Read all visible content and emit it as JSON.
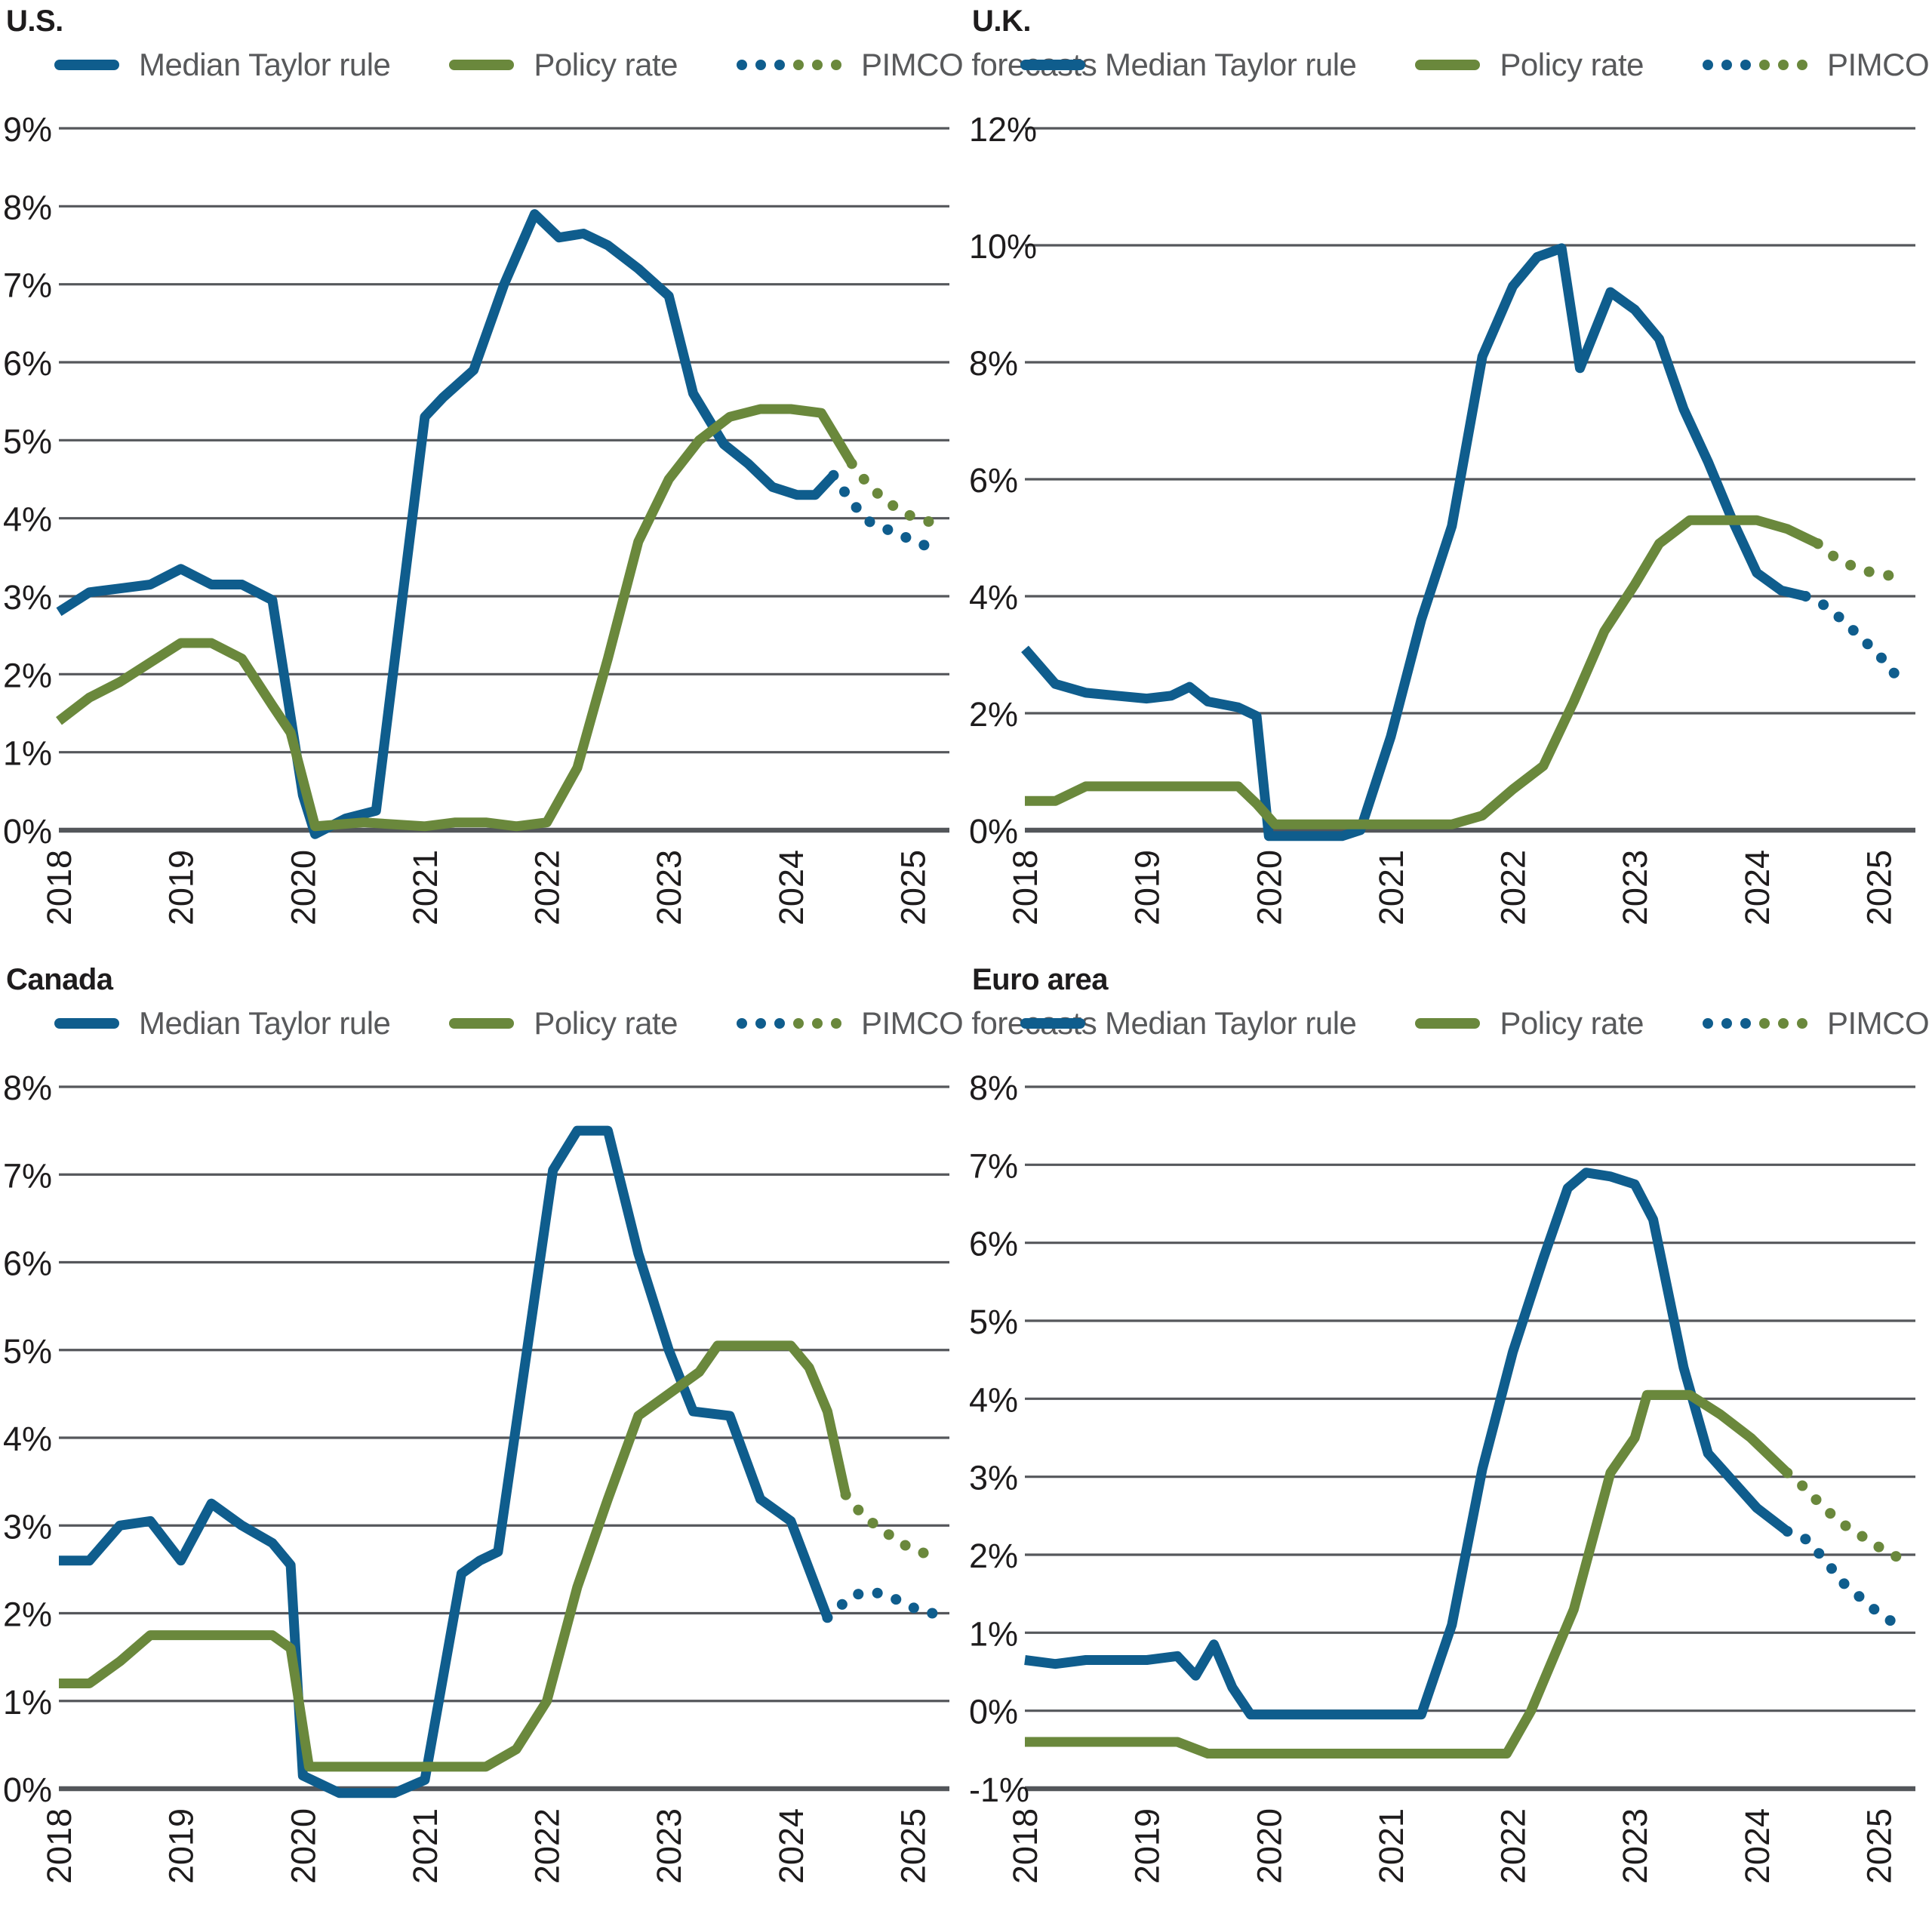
{
  "colors": {
    "taylor_blue": "#0f5d8d",
    "policy_green": "#6a883c",
    "grid_gray": "#55575b",
    "axis_gray": "#53565a",
    "tick_text": "#1e1c1d",
    "legend_text": "#58595b"
  },
  "legend": {
    "taylor": "Median Taylor rule",
    "policy": "Policy rate",
    "forecast": "PIMCO forecasts"
  },
  "chart_data": [
    {
      "id": "us",
      "type": "line",
      "title": "U.S.",
      "x_range": [
        2018,
        2025.3
      ],
      "x_ticks": [
        2018,
        2019,
        2020,
        2021,
        2022,
        2023,
        2024,
        2025
      ],
      "y_range": [
        0,
        9
      ],
      "y_tick_step": 1,
      "y_tick_suffix": "%",
      "grid": true,
      "legend_position": "top",
      "series": [
        {
          "name": "Median Taylor rule",
          "color": "taylor_blue",
          "style": "solid",
          "x": [
            2018.0,
            2018.25,
            2018.5,
            2018.75,
            2019.0,
            2019.25,
            2019.5,
            2019.75,
            2020.0,
            2020.1,
            2020.35,
            2020.6,
            2021.0,
            2021.15,
            2021.4,
            2021.65,
            2021.9,
            2022.1,
            2022.3,
            2022.5,
            2022.75,
            2023.0,
            2023.2,
            2023.45,
            2023.65,
            2023.85,
            2024.05,
            2024.2,
            2024.35
          ],
          "y": [
            2.8,
            3.05,
            3.1,
            3.15,
            3.35,
            3.15,
            3.15,
            2.95,
            0.45,
            -0.05,
            0.15,
            0.25,
            5.3,
            5.55,
            5.9,
            7.0,
            7.9,
            7.6,
            7.65,
            7.5,
            7.2,
            6.85,
            5.6,
            4.95,
            4.7,
            4.4,
            4.3,
            4.3,
            4.55
          ]
        },
        {
          "name": "Policy rate",
          "color": "policy_green",
          "style": "solid",
          "x": [
            2018.0,
            2018.25,
            2018.5,
            2018.75,
            2019.0,
            2019.25,
            2019.5,
            2019.75,
            2019.9,
            2020.1,
            2020.5,
            2021.0,
            2021.25,
            2021.5,
            2021.75,
            2022.0,
            2022.25,
            2022.5,
            2022.75,
            2023.0,
            2023.25,
            2023.5,
            2023.75,
            2024.0,
            2024.25,
            2024.5
          ],
          "y": [
            1.4,
            1.7,
            1.9,
            2.15,
            2.4,
            2.4,
            2.2,
            1.6,
            1.25,
            0.05,
            0.1,
            0.05,
            0.1,
            0.1,
            0.05,
            0.1,
            0.8,
            2.2,
            3.7,
            4.5,
            5.0,
            5.3,
            5.4,
            5.4,
            5.35,
            4.7
          ]
        },
        {
          "name": "PIMCO forecast (Taylor rule)",
          "color": "taylor_blue",
          "style": "dotted",
          "x": [
            2024.35,
            2024.5,
            2024.65,
            2024.8,
            2024.95,
            2025.1,
            2025.2
          ],
          "y": [
            4.55,
            4.2,
            3.95,
            3.85,
            3.75,
            3.65,
            3.6
          ]
        },
        {
          "name": "PIMCO forecast (policy rate)",
          "color": "policy_green",
          "style": "dotted",
          "x": [
            2024.5,
            2024.65,
            2024.8,
            2024.95,
            2025.1,
            2025.2
          ],
          "y": [
            4.7,
            4.4,
            4.2,
            4.05,
            3.97,
            3.93
          ]
        }
      ]
    },
    {
      "id": "uk",
      "type": "line",
      "title": "U.K.",
      "x_range": [
        2018,
        2025.3
      ],
      "x_ticks": [
        2018,
        2019,
        2020,
        2021,
        2022,
        2023,
        2024,
        2025
      ],
      "y_range": [
        0,
        12
      ],
      "y_tick_step": 2,
      "y_tick_suffix": "%",
      "grid": true,
      "legend_position": "top",
      "series": [
        {
          "name": "Median Taylor rule",
          "color": "taylor_blue",
          "style": "solid",
          "x": [
            2018.0,
            2018.25,
            2018.5,
            2018.75,
            2019.0,
            2019.2,
            2019.35,
            2019.5,
            2019.75,
            2019.9,
            2020.0,
            2020.6,
            2020.75,
            2021.0,
            2021.25,
            2021.5,
            2021.75,
            2022.0,
            2022.2,
            2022.4,
            2022.55,
            2022.8,
            2023.0,
            2023.2,
            2023.4,
            2023.6,
            2023.8,
            2024.0,
            2024.2,
            2024.4
          ],
          "y": [
            3.1,
            2.5,
            2.35,
            2.3,
            2.25,
            2.3,
            2.45,
            2.2,
            2.1,
            1.95,
            -0.1,
            -0.1,
            0.0,
            1.6,
            3.6,
            5.2,
            8.1,
            9.3,
            9.8,
            9.95,
            7.9,
            9.2,
            8.9,
            8.4,
            7.2,
            6.3,
            5.3,
            4.4,
            4.1,
            4.0
          ]
        },
        {
          "name": "Policy rate",
          "color": "policy_green",
          "style": "solid",
          "x": [
            2018.0,
            2018.25,
            2018.5,
            2019.75,
            2019.9,
            2020.05,
            2021.5,
            2021.75,
            2022.0,
            2022.25,
            2022.5,
            2022.75,
            2023.0,
            2023.2,
            2023.45,
            2024.0,
            2024.25,
            2024.5
          ],
          "y": [
            0.5,
            0.5,
            0.75,
            0.75,
            0.45,
            0.1,
            0.1,
            0.25,
            0.7,
            1.1,
            2.2,
            3.4,
            4.2,
            4.9,
            5.3,
            5.3,
            5.15,
            4.9
          ]
        },
        {
          "name": "PIMCO forecast (Taylor rule)",
          "color": "taylor_blue",
          "style": "dotted",
          "x": [
            2024.4,
            2024.55,
            2024.7,
            2024.85,
            2025.0,
            2025.1,
            2025.2
          ],
          "y": [
            4.0,
            3.85,
            3.6,
            3.3,
            3.0,
            2.75,
            2.5
          ]
        },
        {
          "name": "PIMCO forecast (policy rate)",
          "color": "policy_green",
          "style": "dotted",
          "x": [
            2024.5,
            2024.65,
            2024.8,
            2024.95,
            2025.1,
            2025.2
          ],
          "y": [
            4.9,
            4.65,
            4.5,
            4.4,
            4.35,
            4.3
          ]
        }
      ]
    },
    {
      "id": "canada",
      "type": "line",
      "title": "Canada",
      "x_range": [
        2018,
        2025.3
      ],
      "x_ticks": [
        2018,
        2019,
        2020,
        2021,
        2022,
        2023,
        2024,
        2025
      ],
      "y_range": [
        0,
        8
      ],
      "y_tick_step": 1,
      "y_tick_suffix": "%",
      "grid": true,
      "legend_position": "top",
      "series": [
        {
          "name": "Median Taylor rule",
          "color": "taylor_blue",
          "style": "solid",
          "x": [
            2018.0,
            2018.25,
            2018.5,
            2018.75,
            2019.0,
            2019.25,
            2019.5,
            2019.75,
            2019.9,
            2020.0,
            2020.3,
            2020.75,
            2021.0,
            2021.3,
            2021.45,
            2021.6,
            2021.9,
            2022.05,
            2022.25,
            2022.5,
            2022.75,
            2023.0,
            2023.2,
            2023.5,
            2023.75,
            2024.0,
            2024.3
          ],
          "y": [
            2.6,
            2.6,
            3.0,
            3.05,
            2.6,
            3.25,
            3.0,
            2.8,
            2.55,
            0.15,
            -0.05,
            -0.05,
            0.1,
            2.45,
            2.6,
            2.7,
            5.6,
            7.05,
            7.5,
            7.5,
            6.1,
            5.0,
            4.3,
            4.25,
            3.3,
            3.05,
            1.95
          ]
        },
        {
          "name": "Policy rate",
          "color": "policy_green",
          "style": "solid",
          "x": [
            2018.0,
            2018.25,
            2018.5,
            2018.75,
            2019.75,
            2019.9,
            2020.05,
            2021.5,
            2021.75,
            2022.0,
            2022.25,
            2022.5,
            2022.75,
            2023.0,
            2023.25,
            2023.4,
            2024.0,
            2024.15,
            2024.3,
            2024.45
          ],
          "y": [
            1.2,
            1.2,
            1.45,
            1.75,
            1.75,
            1.6,
            0.25,
            0.25,
            0.45,
            1.0,
            2.3,
            3.3,
            4.25,
            4.5,
            4.75,
            5.05,
            5.05,
            4.8,
            4.3,
            3.35
          ]
        },
        {
          "name": "PIMCO forecast (Taylor rule)",
          "color": "taylor_blue",
          "style": "dotted",
          "x": [
            2024.3,
            2024.5,
            2024.65,
            2024.8,
            2024.95,
            2025.1,
            2025.2
          ],
          "y": [
            1.95,
            2.2,
            2.25,
            2.2,
            2.1,
            2.0,
            2.0
          ]
        },
        {
          "name": "PIMCO forecast (policy rate)",
          "color": "policy_green",
          "style": "dotted",
          "x": [
            2024.45,
            2024.6,
            2024.75,
            2024.9,
            2025.05,
            2025.2
          ],
          "y": [
            3.35,
            3.1,
            2.95,
            2.8,
            2.7,
            2.65
          ]
        }
      ]
    },
    {
      "id": "euro",
      "type": "line",
      "title": "Euro area",
      "x_range": [
        2018,
        2025.3
      ],
      "x_ticks": [
        2018,
        2019,
        2020,
        2021,
        2022,
        2023,
        2024,
        2025
      ],
      "y_range": [
        -1,
        8
      ],
      "y_tick_step": 1,
      "y_tick_suffix": "%",
      "grid": true,
      "legend_position": "top",
      "series": [
        {
          "name": "Median Taylor rule",
          "color": "taylor_blue",
          "style": "solid",
          "x": [
            2018.0,
            2018.25,
            2018.5,
            2018.75,
            2019.0,
            2019.25,
            2019.4,
            2019.55,
            2019.7,
            2019.85,
            2020.5,
            2021.25,
            2021.5,
            2021.75,
            2022.0,
            2022.25,
            2022.45,
            2022.6,
            2022.8,
            2023.0,
            2023.15,
            2023.4,
            2023.6,
            2023.8,
            2024.0,
            2024.25
          ],
          "y": [
            0.65,
            0.6,
            0.65,
            0.65,
            0.65,
            0.7,
            0.45,
            0.85,
            0.3,
            -0.05,
            -0.05,
            -0.05,
            1.1,
            3.1,
            4.6,
            5.8,
            6.7,
            6.9,
            6.85,
            6.75,
            6.3,
            4.4,
            3.3,
            2.95,
            2.6,
            2.3
          ]
        },
        {
          "name": "Policy rate",
          "color": "policy_green",
          "style": "solid",
          "x": [
            2018.0,
            2019.25,
            2019.5,
            2021.95,
            2022.15,
            2022.5,
            2022.8,
            2023.0,
            2023.1,
            2023.45,
            2023.7,
            2023.95,
            2024.25
          ],
          "y": [
            -0.4,
            -0.4,
            -0.55,
            -0.55,
            0.0,
            1.3,
            3.05,
            3.5,
            4.05,
            4.05,
            3.8,
            3.5,
            3.05
          ]
        },
        {
          "name": "PIMCO forecast (Taylor rule)",
          "color": "taylor_blue",
          "style": "dotted",
          "x": [
            2024.25,
            2024.4,
            2024.55,
            2024.7,
            2024.85,
            2025.0,
            2025.1,
            2025.2
          ],
          "y": [
            2.3,
            2.2,
            1.95,
            1.65,
            1.45,
            1.25,
            1.15,
            1.1
          ]
        },
        {
          "name": "PIMCO forecast (policy rate)",
          "color": "policy_green",
          "style": "dotted",
          "x": [
            2024.25,
            2024.4,
            2024.55,
            2024.7,
            2024.85,
            2025.0,
            2025.1,
            2025.2
          ],
          "y": [
            3.05,
            2.85,
            2.6,
            2.4,
            2.25,
            2.1,
            2.0,
            1.95
          ]
        }
      ]
    }
  ]
}
